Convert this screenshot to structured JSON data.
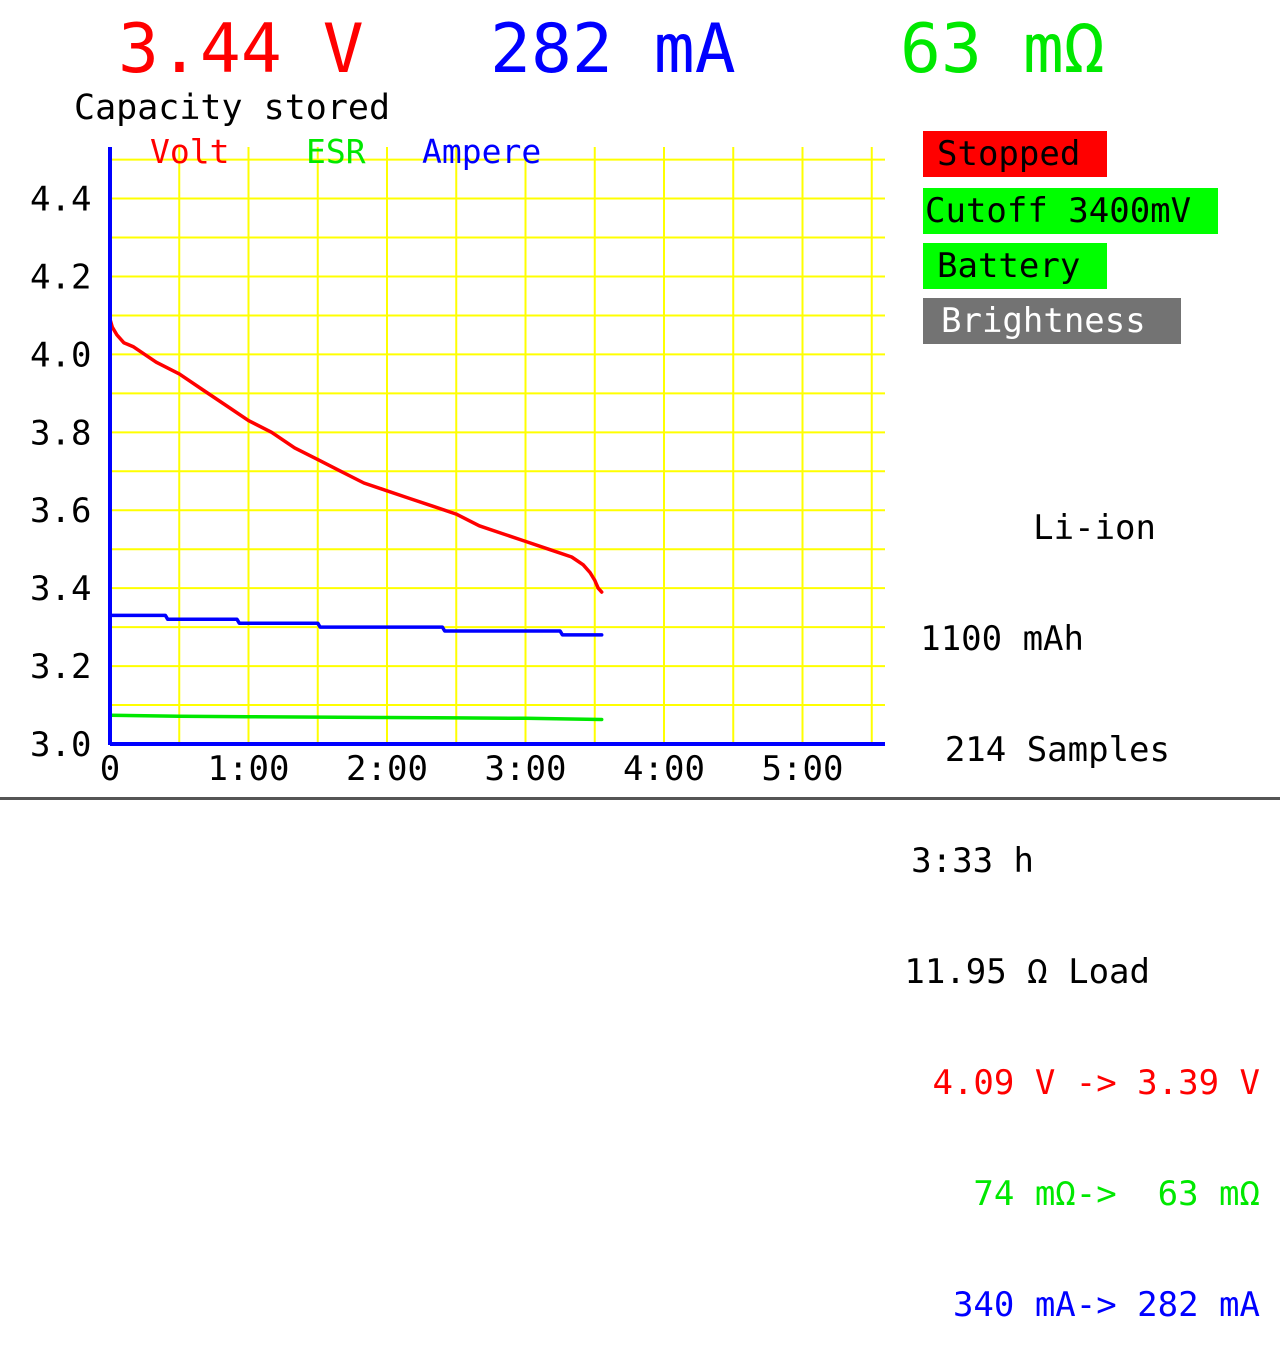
{
  "header": {
    "voltage": "3.44 V",
    "current": "282 mA",
    "esr": "63 mΩ"
  },
  "capacity_title": "Capacity stored",
  "legend": {
    "volt": "Volt",
    "esr": "ESR",
    "ampere": "Ampere"
  },
  "buttons": {
    "stopped": "Stopped",
    "cutoff": "Cutoff 3400mV",
    "battery": "Battery",
    "brightness": "Brightness"
  },
  "stats": {
    "chemistry": "Li-ion",
    "capacity": "1100 mAh",
    "samples": "214 Samples",
    "time": "3:33 h",
    "load": "11.95 Ω Load",
    "volt_range": "4.09 V -> 3.39 V",
    "esr_range": "74 mΩ->  63 mΩ",
    "amp_range": "340 mA-> 282 mA"
  },
  "colors": {
    "volt": "#ff0000",
    "esr": "#00e800",
    "ampere": "#0000ff",
    "grid": "#ffff00",
    "axis": "#0000ff"
  },
  "chart_data": {
    "type": "line",
    "x_unit": "minutes",
    "xlim": [
      0,
      336
    ],
    "ylim": [
      3.0,
      4.52
    ],
    "y_ticks": [
      "3.0",
      "3.2",
      "3.4",
      "3.6",
      "3.8",
      "4.0",
      "4.2",
      "4.4"
    ],
    "y_tick_values": [
      3.0,
      3.2,
      3.4,
      3.6,
      3.8,
      4.0,
      4.2,
      4.4
    ],
    "x_ticks": [
      "0",
      "1:00",
      "2:00",
      "3:00",
      "4:00",
      "5:00"
    ],
    "x_tick_values": [
      0,
      60,
      120,
      180,
      240,
      300
    ],
    "grid": true,
    "series": [
      {
        "name": "Volt",
        "color": "#ff0000",
        "x": [
          0,
          1,
          3,
          6,
          10,
          20,
          30,
          40,
          50,
          60,
          70,
          80,
          90,
          100,
          110,
          120,
          130,
          140,
          150,
          160,
          170,
          180,
          190,
          200,
          205,
          208,
          210,
          211.5,
          213
        ],
        "y": [
          4.09,
          4.07,
          4.05,
          4.03,
          4.02,
          3.98,
          3.95,
          3.91,
          3.87,
          3.83,
          3.8,
          3.76,
          3.73,
          3.7,
          3.67,
          3.65,
          3.63,
          3.61,
          3.59,
          3.56,
          3.54,
          3.52,
          3.5,
          3.48,
          3.46,
          3.44,
          3.42,
          3.4,
          3.39
        ]
      },
      {
        "name": "Ampere",
        "color": "#0000ff",
        "x": [
          0,
          24,
          25,
          55,
          56,
          90,
          91,
          144,
          145,
          195,
          196,
          213
        ],
        "y": [
          3.33,
          3.33,
          3.32,
          3.32,
          3.31,
          3.31,
          3.3,
          3.3,
          3.29,
          3.29,
          3.28,
          3.28
        ]
      },
      {
        "name": "ESR",
        "color": "#00e800",
        "x": [
          0,
          30,
          60,
          90,
          120,
          150,
          180,
          213
        ],
        "y": [
          3.074,
          3.071,
          3.07,
          3.069,
          3.068,
          3.067,
          3.066,
          3.063
        ]
      }
    ]
  }
}
